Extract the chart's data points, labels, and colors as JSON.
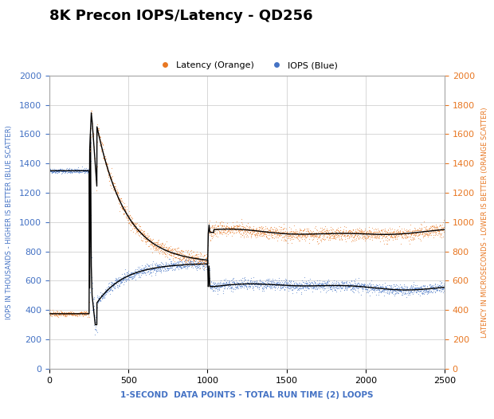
{
  "title": "8K Precon IOPS/Latency - QD256",
  "xlabel": "1-SECOND  DATA POINTS - TOTAL RUN TIME (2) LOOPS",
  "ylabel_left": "IOPS IN THOUSANDS - HIGHER IS BETTER (BLUE SCATTER)",
  "ylabel_right": "LATENCY IN MICROSECONDS - LOWER IS BETTER (ORANGE SCATTER)",
  "xlim": [
    0,
    2500
  ],
  "ylim": [
    0,
    2000
  ],
  "legend_latency": "Latency (Orange)",
  "legend_iops": "IOPS (Blue)",
  "orange_color": "#E87722",
  "blue_color": "#4472C4",
  "background_color": "#FFFFFF",
  "grid_color": "#C8C8C8",
  "title_color": "#000000",
  "title_fontsize": 13,
  "axis_label_color_left": "#4472C4",
  "axis_label_color_right": "#E87722",
  "xlabel_color": "#4472C4",
  "xticks": [
    0,
    500,
    1000,
    1500,
    2000,
    2500
  ],
  "yticks": [
    0,
    200,
    400,
    600,
    800,
    1000,
    1200,
    1400,
    1600,
    1800,
    2000
  ]
}
